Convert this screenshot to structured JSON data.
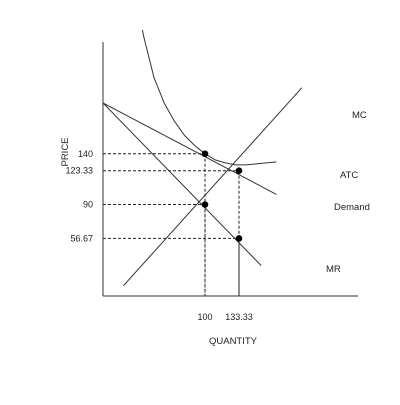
{
  "chart_data": {
    "type": "line",
    "title": "",
    "xlabel": "QUANTITY",
    "ylabel": "PRICE",
    "xlim": [
      0,
      250
    ],
    "ylim": [
      0,
      250
    ],
    "grid": false,
    "legend": "none",
    "x_ticks": [
      {
        "value": 100,
        "label": "100"
      },
      {
        "value": 133.33,
        "label": "133.33"
      }
    ],
    "y_ticks": [
      {
        "value": 140,
        "label": "140"
      },
      {
        "value": 123.33,
        "label": "123.33"
      },
      {
        "value": 90,
        "label": "90"
      },
      {
        "value": 56.67,
        "label": "56.67"
      }
    ],
    "series": [
      {
        "name": "MC",
        "color": "#333333",
        "points": [
          [
            20,
            10
          ],
          [
            195,
            205
          ]
        ]
      },
      {
        "name": "ATC",
        "color": "#333333",
        "points": [
          [
            35,
            280
          ],
          [
            40,
            255
          ],
          [
            50,
            215
          ],
          [
            60,
            190
          ],
          [
            70,
            172
          ],
          [
            80,
            158
          ],
          [
            90,
            148
          ],
          [
            100,
            140
          ],
          [
            110,
            134
          ],
          [
            120,
            131
          ],
          [
            130,
            129
          ],
          [
            140,
            129
          ],
          [
            150,
            130
          ],
          [
            170,
            132
          ]
        ]
      },
      {
        "name": "Demand",
        "color": "#333333",
        "points": [
          [
            0,
            190
          ],
          [
            170,
            100
          ]
        ]
      },
      {
        "name": "MR",
        "color": "#333333",
        "points": [
          [
            0,
            190
          ],
          [
            155,
            30
          ]
        ]
      }
    ],
    "markers": [
      {
        "x": 100,
        "y": 140
      },
      {
        "x": 133.33,
        "y": 123.33
      },
      {
        "x": 100,
        "y": 90
      },
      {
        "x": 133.33,
        "y": 56.67
      }
    ],
    "guides": [
      {
        "x": 100,
        "y": 140
      },
      {
        "x": 133.33,
        "y": 123.33
      },
      {
        "x": 100,
        "y": 90
      },
      {
        "x": 133.33,
        "y": 56.67
      }
    ]
  }
}
